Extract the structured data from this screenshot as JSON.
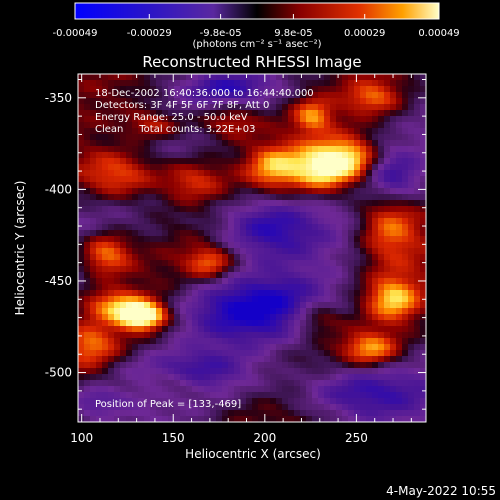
{
  "chart_data": {
    "type": "heatmap",
    "title": "Reconstructed RHESSI Image",
    "xlabel": "Heliocentric X (arcsec)",
    "ylabel": "Heliocentric Y (arcsec)",
    "xlim": [
      98,
      288
    ],
    "ylim": [
      -527,
      -337
    ],
    "x_ticks": [
      100,
      150,
      200,
      250
    ],
    "y_ticks": [
      -350,
      -400,
      -450,
      -500
    ],
    "colorbar": {
      "vmin": -0.00049,
      "vmax": 0.00049,
      "tick_values": [
        -0.00049,
        -0.00029,
        -9.8e-05,
        9.8e-05,
        0.00029,
        0.00049
      ],
      "tick_labels": [
        "-0.00049",
        "-0.00029",
        "-9.8e-05",
        "9.8e-05",
        "0.00029",
        "0.00049"
      ],
      "unit_label": "(photons cm⁻² s⁻¹ asec⁻²)"
    },
    "annotations": [
      "18-Dec-2002 16:40:36.000 to 16:44:40.000",
      "Detectors: 3F 4F 5F 6F 7F 8F, Att 0",
      "Energy Range: 25.0 - 50.0 keV",
      "Clean     Total counts: 3.22E+03"
    ],
    "peak_label": "Position of Peak = [133,-469]",
    "peak": {
      "x": 133,
      "y": -469
    },
    "blobs": [
      {
        "x": 133,
        "y": -469,
        "amp": 1.6,
        "sx": 9,
        "sy": 5
      },
      {
        "x": 118,
        "y": -463,
        "amp": 0.7,
        "sx": 12,
        "sy": 6
      },
      {
        "x": 232,
        "y": -388,
        "amp": 1.3,
        "sx": 12,
        "sy": 9
      },
      {
        "x": 248,
        "y": -383,
        "amp": 0.8,
        "sx": 10,
        "sy": 8
      },
      {
        "x": 226,
        "y": -360,
        "amp": 0.7,
        "sx": 7,
        "sy": 6
      },
      {
        "x": 268,
        "y": -418,
        "amp": 0.9,
        "sx": 12,
        "sy": 16
      },
      {
        "x": 120,
        "y": -392,
        "amp": 0.9,
        "sx": 16,
        "sy": 10
      },
      {
        "x": 113,
        "y": -435,
        "amp": 0.9,
        "sx": 10,
        "sy": 8
      },
      {
        "x": 180,
        "y": -363,
        "amp": 0.6,
        "sx": 12,
        "sy": 7
      },
      {
        "x": 205,
        "y": -388,
        "amp": 0.8,
        "sx": 10,
        "sy": 8
      },
      {
        "x": 270,
        "y": -460,
        "amp": 0.9,
        "sx": 10,
        "sy": 8
      },
      {
        "x": 258,
        "y": -487,
        "amp": 0.8,
        "sx": 10,
        "sy": 6
      },
      {
        "x": 170,
        "y": -440,
        "amp": 0.7,
        "sx": 9,
        "sy": 6
      },
      {
        "x": 228,
        "y": -470,
        "amp": 0.6,
        "sx": 10,
        "sy": 6
      },
      {
        "x": 160,
        "y": -395,
        "amp": 0.6,
        "sx": 12,
        "sy": 8
      },
      {
        "x": 105,
        "y": -485,
        "amp": 0.6,
        "sx": 10,
        "sy": 8
      },
      {
        "x": 260,
        "y": -350,
        "amp": 0.6,
        "sx": 10,
        "sy": 6
      },
      {
        "x": 140,
        "y": -365,
        "amp": 0.6,
        "sx": 12,
        "sy": 6
      },
      {
        "x": 150,
        "y": -505,
        "amp": 0.5,
        "sx": 12,
        "sy": 6
      },
      {
        "x": 195,
        "y": -465,
        "amp": -0.9,
        "sx": 30,
        "sy": 12
      },
      {
        "x": 250,
        "y": -510,
        "amp": -0.8,
        "sx": 25,
        "sy": 10
      },
      {
        "x": 200,
        "y": -420,
        "amp": -0.9,
        "sx": 20,
        "sy": 12
      },
      {
        "x": 155,
        "y": -500,
        "amp": -0.6,
        "sx": 25,
        "sy": 8
      },
      {
        "x": 270,
        "y": -395,
        "amp": -0.7,
        "sx": 10,
        "sy": 10
      },
      {
        "x": 180,
        "y": -345,
        "amp": -0.6,
        "sx": 18,
        "sy": 6
      },
      {
        "x": 105,
        "y": -515,
        "amp": -0.6,
        "sx": 12,
        "sy": 6
      }
    ]
  },
  "footer": {
    "timestamp": "4-May-2022 10:55"
  }
}
